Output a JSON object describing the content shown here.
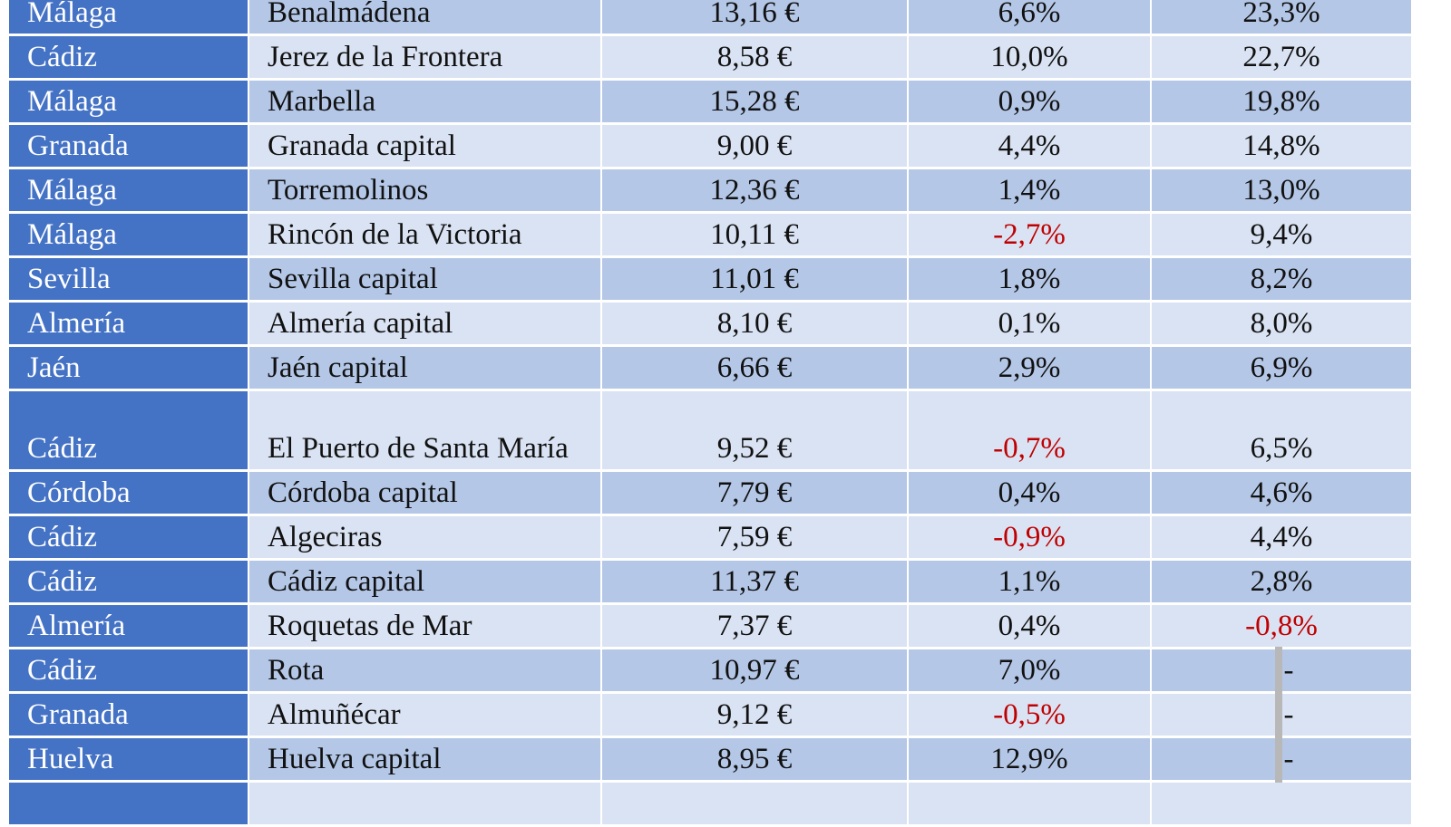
{
  "table": {
    "rows": [
      {
        "province": "Málaga",
        "municipality": "Benalmádena",
        "price": "13,16 €",
        "change_a": "6,6%",
        "change_b": "23,3%"
      },
      {
        "province": "Cádiz",
        "municipality": "Jerez de la Frontera",
        "price": "8,58 €",
        "change_a": "10,0%",
        "change_b": "22,7%"
      },
      {
        "province": "Málaga",
        "municipality": "Marbella",
        "price": "15,28 €",
        "change_a": "0,9%",
        "change_b": "19,8%"
      },
      {
        "province": "Granada",
        "municipality": "Granada capital",
        "price": "9,00 €",
        "change_a": "4,4%",
        "change_b": "14,8%"
      },
      {
        "province": "Málaga",
        "municipality": "Torremolinos",
        "price": "12,36 €",
        "change_a": "1,4%",
        "change_b": "13,0%"
      },
      {
        "province": "Málaga",
        "municipality": "Rincón de la Victoria",
        "price": "10,11 €",
        "change_a": "-2,7%",
        "change_b": "9,4%"
      },
      {
        "province": "Sevilla",
        "municipality": "Sevilla capital",
        "price": "11,01 €",
        "change_a": "1,8%",
        "change_b": "8,2%"
      },
      {
        "province": "Almería",
        "municipality": "Almería capital",
        "price": "8,10 €",
        "change_a": "0,1%",
        "change_b": "8,0%"
      },
      {
        "province": "Jaén",
        "municipality": "Jaén capital",
        "price": "6,66 €",
        "change_a": "2,9%",
        "change_b": "6,9%"
      },
      {
        "province": "Cádiz",
        "municipality": "El Puerto de Santa María",
        "price": "9,52 €",
        "change_a": "-0,7%",
        "change_b": "6,5%"
      },
      {
        "province": "Córdoba",
        "municipality": "Córdoba capital",
        "price": "7,79 €",
        "change_a": "0,4%",
        "change_b": "4,6%"
      },
      {
        "province": "Cádiz",
        "municipality": "Algeciras",
        "price": "7,59 €",
        "change_a": "-0,9%",
        "change_b": "4,4%"
      },
      {
        "province": "Cádiz",
        "municipality": "Cádiz capital",
        "price": "11,37 €",
        "change_a": "1,1%",
        "change_b": "2,8%"
      },
      {
        "province": "Almería",
        "municipality": "Roquetas de Mar",
        "price": "7,37 €",
        "change_a": "0,4%",
        "change_b": "-0,8%"
      },
      {
        "province": "Cádiz",
        "municipality": "Rota",
        "price": "10,97 €",
        "change_a": "7,0%",
        "change_b": "-"
      },
      {
        "province": "Granada",
        "municipality": "Almuñécar",
        "price": "9,12 €",
        "change_a": "-0,5%",
        "change_b": "-"
      },
      {
        "province": "Huelva",
        "municipality": "Huelva capital",
        "price": "8,95 €",
        "change_a": "12,9%",
        "change_b": "-"
      }
    ],
    "colors": {
      "province_bg": "#4472c4",
      "row_dark": "#b4c7e7",
      "row_light": "#dae3f3",
      "negative": "#c00000"
    }
  }
}
